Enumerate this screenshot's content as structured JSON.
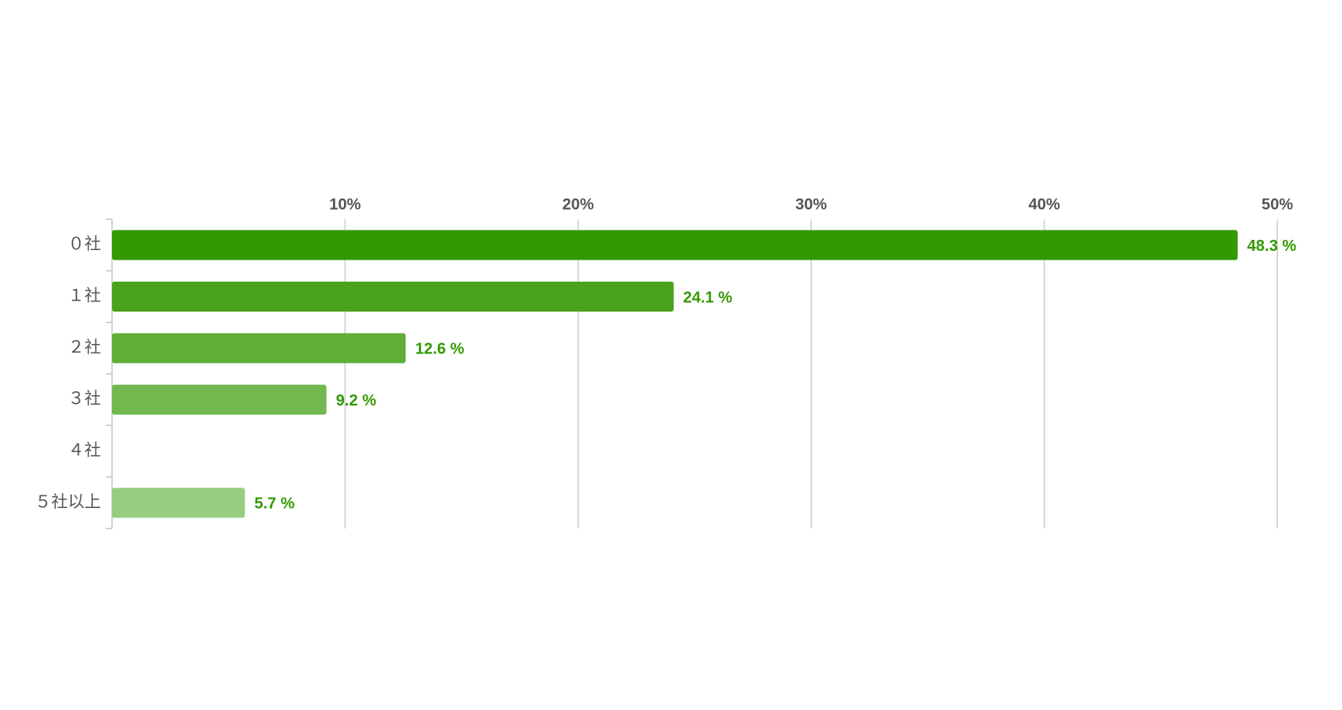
{
  "chart_data": {
    "type": "hbar",
    "categories": [
      "０社",
      "１社",
      "２社",
      "３社",
      "４社",
      "５社以上"
    ],
    "values": [
      48.3,
      24.1,
      12.6,
      9.2,
      null,
      5.7
    ],
    "value_labels": [
      "48.3 %",
      "24.1 %",
      "12.6 %",
      "9.2 %",
      null,
      "5.7 %"
    ],
    "colors": [
      "#339900",
      "#4ba31d",
      "#5fae36",
      "#71b94f",
      null,
      "#98cd80"
    ],
    "label_color": "#339900",
    "xlim": [
      0,
      50
    ],
    "xticks": [
      {
        "value": 10,
        "label": "10%"
      },
      {
        "value": 20,
        "label": "20%"
      },
      {
        "value": 30,
        "label": "30%"
      },
      {
        "value": 40,
        "label": "40%"
      },
      {
        "value": 50,
        "label": "50%"
      }
    ],
    "grid": true
  }
}
